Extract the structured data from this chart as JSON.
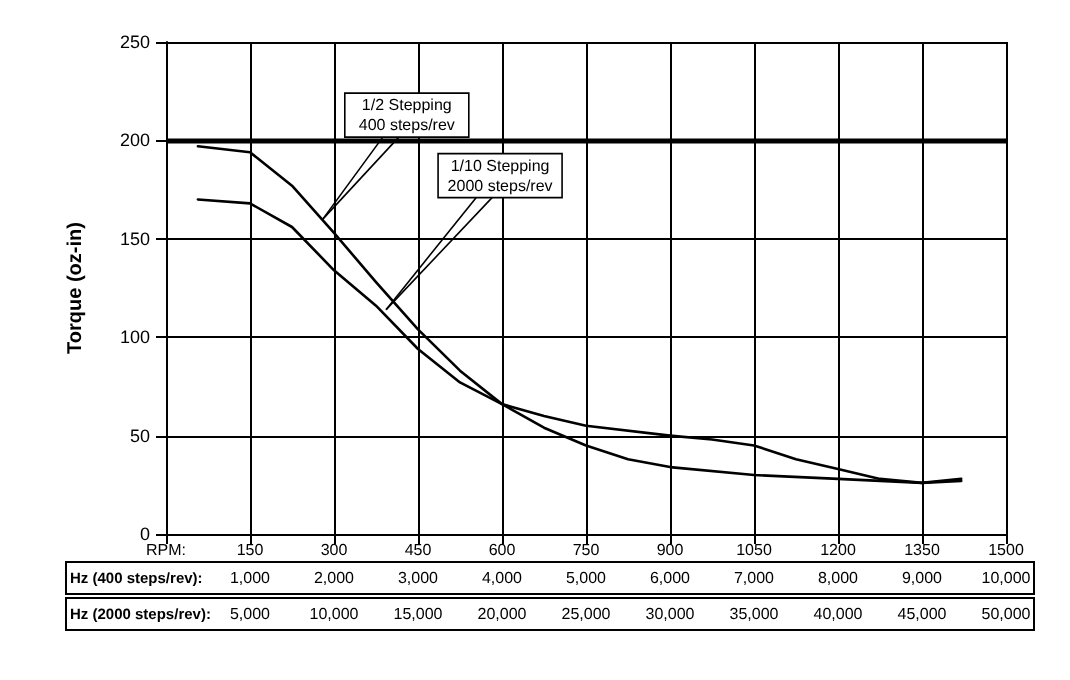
{
  "chart_data": {
    "type": "line",
    "ylabel": "Torque (oz-in)",
    "xlim": [
      0,
      1500
    ],
    "xticks": [
      {
        "value": 0,
        "label": "RPM:"
      },
      150,
      300,
      450,
      600,
      750,
      900,
      1050,
      1200,
      1350,
      1500
    ],
    "x2label": "Hz (400 steps/rev):",
    "x2lim": [
      0,
      10000
    ],
    "x2ticks": [
      {
        "value": 1000,
        "label": "1,000"
      },
      {
        "value": 2000,
        "label": "2,000"
      },
      {
        "value": 3000,
        "label": "3,000"
      },
      {
        "value": 4000,
        "label": "4,000"
      },
      {
        "value": 5000,
        "label": "5,000"
      },
      {
        "value": 6000,
        "label": "6,000"
      },
      {
        "value": 7000,
        "label": "7,000"
      },
      {
        "value": 8000,
        "label": "8,000"
      },
      {
        "value": 9000,
        "label": "9,000"
      },
      {
        "value": 10000,
        "label": "10,000"
      }
    ],
    "ylim": [
      0,
      250
    ],
    "yticks": [
      0,
      50,
      100,
      150,
      200,
      250
    ],
    "grid": true,
    "marker": "none",
    "line_style": "solid",
    "series": [
      {
        "color": "#000000",
        "x": [
          57,
          150,
          225,
          300,
          375,
          450,
          525,
          600,
          675,
          750,
          825,
          900,
          1050,
          1200,
          1275,
          1350,
          1420
        ],
        "values": [
          197,
          194,
          177,
          153,
          128,
          104,
          83,
          66,
          54,
          45,
          38,
          34,
          30,
          28,
          27,
          26,
          27
        ]
      },
      {
        "color": "#000000",
        "x": [
          57,
          150,
          225,
          300,
          375,
          450,
          525,
          600,
          675,
          750,
          900,
          975,
          1050,
          1125,
          1200,
          1275,
          1350,
          1420
        ],
        "values": [
          170,
          168,
          156,
          134,
          116,
          94,
          77,
          66,
          60,
          55,
          50,
          48,
          45,
          38,
          33,
          28,
          26,
          28
        ]
      }
    ],
    "ref_lines": [
      {
        "axis": "y",
        "value": 200,
        "color": "#000000"
      }
    ],
    "annotations": [
      {
        "text": "1/2 Stepping\n400 steps/rev",
        "x": 280,
        "y": 160
      },
      {
        "text": "1/10 Stepping\n2000 steps/rev",
        "x": 393,
        "y": 114
      },
      "Hz (2000 steps/rev):",
      "5,000",
      "10,000",
      "15,000",
      "20,000",
      "25,000",
      "30,000",
      "35,000",
      "40,000",
      "45,000",
      "50,000"
    ]
  }
}
